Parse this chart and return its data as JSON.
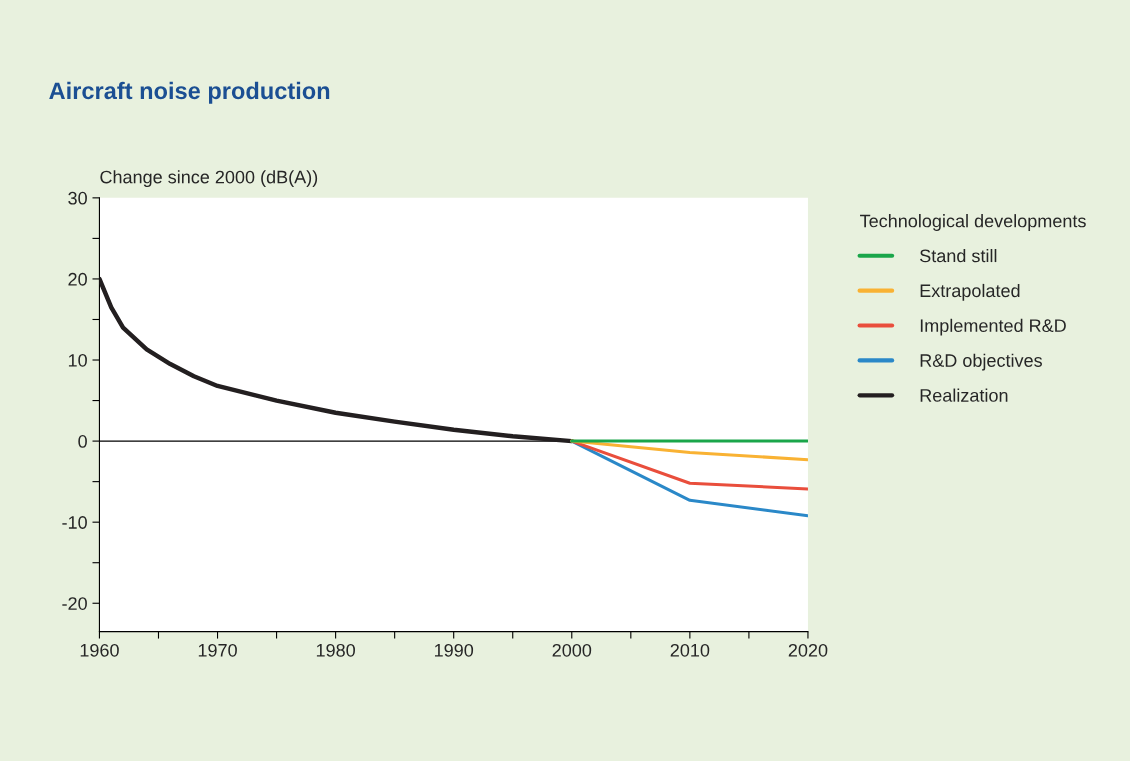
{
  "chart_data": {
    "type": "line",
    "title": "Aircraft noise production",
    "ylabel": "Change since 2000 (dB(A))",
    "legend_title": "Technological developments",
    "xlim": [
      1960,
      2020
    ],
    "xticks": [
      1960,
      {
        "value": 1965,
        "label": null
      },
      1970,
      {
        "value": 1975,
        "label": null
      },
      1980,
      {
        "value": 1985,
        "label": null
      },
      1990,
      {
        "value": 1995,
        "label": null
      },
      2000,
      {
        "value": 2005,
        "label": null
      },
      2010,
      {
        "value": 2015,
        "label": null
      },
      2020
    ],
    "ylim": [
      -23.5,
      30
    ],
    "yticks": [
      {
        "value": -20,
        "label": "-20"
      },
      {
        "value": -15,
        "label": null
      },
      {
        "value": -10,
        "label": "-10"
      },
      {
        "value": -5,
        "label": null
      },
      0,
      {
        "value": 5,
        "label": null
      },
      10,
      {
        "value": 15,
        "label": null
      },
      20,
      {
        "value": 25,
        "label": null
      },
      30
    ],
    "grid": false,
    "legend": "right",
    "line_style": "solid",
    "marker": "none",
    "ref_lines": [
      {
        "axis": "y",
        "value": 0,
        "color": "#000000"
      }
    ],
    "series": [
      {
        "name": "Stand still",
        "color": "#1aa64a",
        "x": [
          2000,
          2010,
          2020
        ],
        "values": [
          0,
          0,
          0
        ]
      },
      {
        "name": "Extrapolated",
        "color": "#f9b233",
        "x": [
          2000,
          2010,
          2020
        ],
        "values": [
          0,
          -1.4,
          -2.3
        ]
      },
      {
        "name": "Implemented R&D",
        "color": "#e94e3c",
        "x": [
          2000,
          2010,
          2020
        ],
        "values": [
          0,
          -5.2,
          -5.9
        ]
      },
      {
        "name": "R&D objectives",
        "color": "#2a88c8",
        "x": [
          2000,
          2010,
          2020
        ],
        "values": [
          0,
          -7.3,
          -9.2
        ]
      },
      {
        "name": "Realization",
        "color": "#231f20",
        "x": [
          1960,
          1961,
          1962,
          1964,
          1966,
          1968,
          1970,
          1975,
          1980,
          1985,
          1990,
          1995,
          2000
        ],
        "values": [
          20,
          16.5,
          14,
          11.3,
          9.5,
          8.0,
          6.8,
          5.0,
          3.5,
          2.4,
          1.4,
          0.6,
          0
        ]
      }
    ]
  }
}
